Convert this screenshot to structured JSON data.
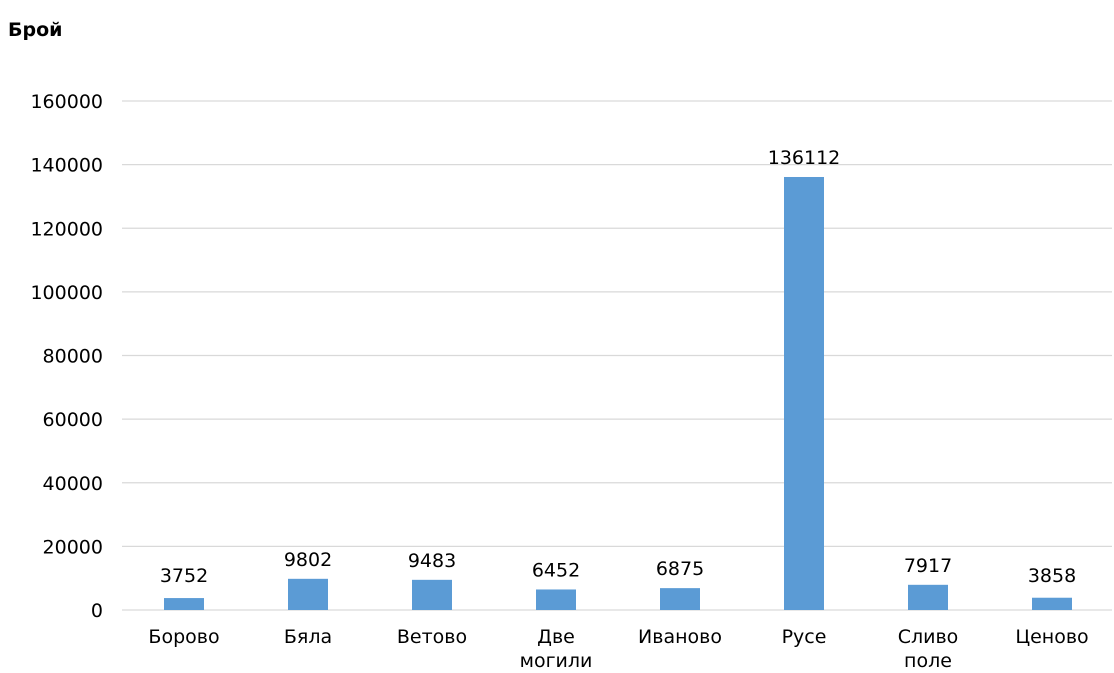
{
  "chart_data": {
    "type": "bar",
    "title": "",
    "xlabel": "",
    "ylabel": "Брой",
    "categories": [
      "Борово",
      "Бяла",
      "Ветово",
      "Две могили",
      "Иваново",
      "Русе",
      "Сливо поле",
      "Ценово"
    ],
    "values": [
      3752,
      9802,
      9483,
      6452,
      6875,
      136112,
      7917,
      3858
    ],
    "data_labels": [
      "3752",
      "9802",
      "9483",
      "6452",
      "6875",
      "136112",
      "7917",
      "3858"
    ],
    "y_ticks": [
      "0",
      "20000",
      "40000",
      "60000",
      "80000",
      "100000",
      "120000",
      "140000",
      "160000"
    ],
    "ylim": [
      0,
      160000
    ],
    "grid": true,
    "legend": "none",
    "colors": {
      "bar": "#5b9bd5",
      "grid": "#d9d9d9",
      "text": "#000000"
    }
  }
}
